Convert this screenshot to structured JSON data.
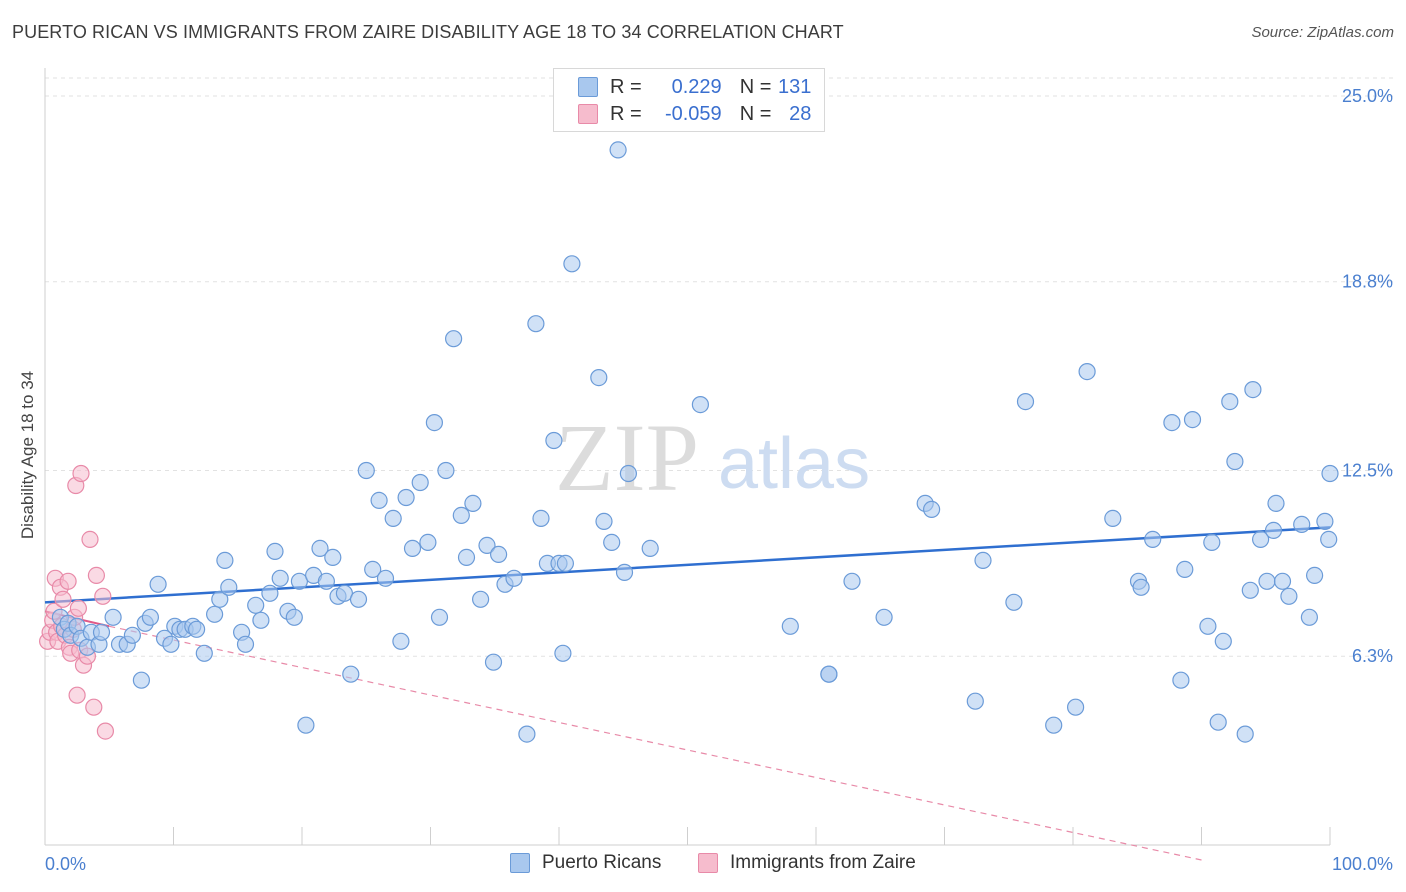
{
  "header": {
    "title": "PUERTO RICAN VS IMMIGRANTS FROM ZAIRE DISABILITY AGE 18 TO 34 CORRELATION CHART",
    "source": "Source: ZipAtlas.com"
  },
  "watermark": {
    "zip": "ZIP",
    "atlas": "atlas"
  },
  "legend_stats": {
    "rows": [
      {
        "r_label": "R = ",
        "r_value": "0.229",
        "n_label": "N = ",
        "n_value": "131",
        "color": "#a9c8ee",
        "edge": "#6b9bd8"
      },
      {
        "r_label": "R = ",
        "r_value": "-0.059",
        "n_label": "N = ",
        "n_value": "28",
        "color": "#f6bccd",
        "edge": "#e88aa8"
      }
    ]
  },
  "chart_data": {
    "type": "scatter",
    "title": "PUERTO RICAN VS IMMIGRANTS FROM ZAIRE DISABILITY AGE 18 TO 34 CORRELATION CHART",
    "xlabel": "",
    "ylabel": "Disability Age 18 to 34",
    "xlim": [
      0,
      100
    ],
    "ylim": [
      0,
      25.6
    ],
    "x_tick_labels": [
      "0.0%",
      "100.0%"
    ],
    "y_ticks": [
      {
        "value": 6.3,
        "label": "6.3%"
      },
      {
        "value": 12.5,
        "label": "12.5%"
      },
      {
        "value": 18.8,
        "label": "18.8%"
      },
      {
        "value": 25.0,
        "label": "25.0%"
      }
    ],
    "grid": "horizontal dashed",
    "legend_position": "bottom",
    "series": [
      {
        "name": "Puerto Ricans",
        "color": "#a9c8ee",
        "edge": "#6b9bd8",
        "trend": {
          "x": [
            0,
            100
          ],
          "y": [
            8.1,
            10.6
          ],
          "style": "solid",
          "color": "#2f6fd0"
        },
        "points": [
          [
            1.2,
            7.6
          ],
          [
            1.5,
            7.2
          ],
          [
            1.8,
            7.4
          ],
          [
            2.0,
            7.0
          ],
          [
            2.5,
            7.3
          ],
          [
            2.8,
            6.9
          ],
          [
            3.3,
            6.6
          ],
          [
            3.6,
            7.1
          ],
          [
            4.2,
            6.7
          ],
          [
            4.4,
            7.1
          ],
          [
            5.3,
            7.6
          ],
          [
            5.8,
            6.7
          ],
          [
            6.4,
            6.7
          ],
          [
            6.8,
            7.0
          ],
          [
            7.5,
            5.5
          ],
          [
            7.8,
            7.4
          ],
          [
            8.2,
            7.6
          ],
          [
            8.8,
            8.7
          ],
          [
            9.3,
            6.9
          ],
          [
            9.8,
            6.7
          ],
          [
            10.1,
            7.3
          ],
          [
            10.5,
            7.2
          ],
          [
            10.9,
            7.2
          ],
          [
            11.5,
            7.3
          ],
          [
            11.8,
            7.2
          ],
          [
            12.4,
            6.4
          ],
          [
            13.2,
            7.7
          ],
          [
            13.6,
            8.2
          ],
          [
            14.0,
            9.5
          ],
          [
            14.3,
            8.6
          ],
          [
            15.3,
            7.1
          ],
          [
            15.6,
            6.7
          ],
          [
            16.4,
            8.0
          ],
          [
            16.8,
            7.5
          ],
          [
            17.5,
            8.4
          ],
          [
            17.9,
            9.8
          ],
          [
            18.3,
            8.9
          ],
          [
            18.9,
            7.8
          ],
          [
            19.4,
            7.6
          ],
          [
            19.8,
            8.8
          ],
          [
            20.3,
            4.0
          ],
          [
            20.9,
            9.0
          ],
          [
            21.4,
            9.9
          ],
          [
            21.9,
            8.8
          ],
          [
            22.4,
            9.6
          ],
          [
            22.8,
            8.3
          ],
          [
            23.3,
            8.4
          ],
          [
            23.8,
            5.7
          ],
          [
            24.4,
            8.2
          ],
          [
            25.0,
            12.5
          ],
          [
            25.5,
            9.2
          ],
          [
            26.0,
            11.5
          ],
          [
            26.5,
            8.9
          ],
          [
            27.1,
            10.9
          ],
          [
            27.7,
            6.8
          ],
          [
            28.1,
            11.6
          ],
          [
            28.6,
            9.9
          ],
          [
            29.2,
            12.1
          ],
          [
            29.8,
            10.1
          ],
          [
            30.3,
            14.1
          ],
          [
            30.7,
            7.6
          ],
          [
            31.2,
            12.5
          ],
          [
            31.8,
            16.9
          ],
          [
            32.4,
            11.0
          ],
          [
            32.8,
            9.6
          ],
          [
            33.3,
            11.4
          ],
          [
            33.9,
            8.2
          ],
          [
            34.4,
            10.0
          ],
          [
            34.9,
            6.1
          ],
          [
            35.3,
            9.7
          ],
          [
            35.8,
            8.7
          ],
          [
            36.5,
            8.9
          ],
          [
            37.5,
            3.7
          ],
          [
            38.2,
            17.4
          ],
          [
            38.6,
            10.9
          ],
          [
            39.1,
            9.4
          ],
          [
            39.6,
            13.5
          ],
          [
            40.0,
            9.4
          ],
          [
            40.3,
            6.4
          ],
          [
            40.5,
            9.4
          ],
          [
            41.0,
            19.4
          ],
          [
            43.1,
            15.6
          ],
          [
            43.5,
            10.8
          ],
          [
            44.1,
            10.1
          ],
          [
            44.6,
            23.2
          ],
          [
            45.1,
            9.1
          ],
          [
            45.4,
            12.4
          ],
          [
            47.1,
            9.9
          ],
          [
            51.0,
            14.7
          ],
          [
            58.0,
            7.3
          ],
          [
            61.0,
            5.7
          ],
          [
            61.0,
            5.7
          ],
          [
            62.8,
            8.8
          ],
          [
            65.3,
            7.6
          ],
          [
            68.5,
            11.4
          ],
          [
            69.0,
            11.2
          ],
          [
            72.4,
            4.8
          ],
          [
            73.0,
            9.5
          ],
          [
            75.4,
            8.1
          ],
          [
            76.3,
            14.8
          ],
          [
            78.5,
            4.0
          ],
          [
            80.2,
            4.6
          ],
          [
            81.1,
            15.8
          ],
          [
            83.1,
            10.9
          ],
          [
            85.1,
            8.8
          ],
          [
            85.3,
            8.6
          ],
          [
            86.2,
            10.2
          ],
          [
            87.7,
            14.1
          ],
          [
            88.4,
            5.5
          ],
          [
            88.7,
            9.2
          ],
          [
            89.3,
            14.2
          ],
          [
            90.5,
            7.3
          ],
          [
            90.8,
            10.1
          ],
          [
            91.3,
            4.1
          ],
          [
            91.7,
            6.8
          ],
          [
            92.2,
            14.8
          ],
          [
            92.6,
            12.8
          ],
          [
            93.4,
            3.7
          ],
          [
            93.8,
            8.5
          ],
          [
            94.0,
            15.2
          ],
          [
            94.6,
            10.2
          ],
          [
            95.1,
            8.8
          ],
          [
            95.6,
            10.5
          ],
          [
            95.8,
            11.4
          ],
          [
            96.3,
            8.8
          ],
          [
            96.8,
            8.3
          ],
          [
            97.8,
            10.7
          ],
          [
            98.4,
            7.6
          ],
          [
            98.8,
            9.0
          ],
          [
            99.6,
            10.8
          ],
          [
            99.9,
            10.2
          ],
          [
            100.0,
            12.4
          ]
        ]
      },
      {
        "name": "Immigrants from Zaire",
        "color": "#f6bccd",
        "edge": "#e88aa8",
        "trend_solid": {
          "x": [
            0,
            5
          ],
          "y": [
            7.8,
            7.3
          ],
          "style": "solid",
          "color": "#e05a88"
        },
        "trend_dashed": {
          "x": [
            5,
            90
          ],
          "y": [
            7.3,
            -0.5
          ],
          "style": "dashed",
          "color": "#e88aa8"
        },
        "points": [
          [
            0.2,
            6.8
          ],
          [
            0.4,
            7.1
          ],
          [
            0.6,
            7.5
          ],
          [
            0.7,
            7.8
          ],
          [
            0.8,
            8.9
          ],
          [
            0.9,
            7.1
          ],
          [
            1.0,
            6.8
          ],
          [
            1.2,
            8.6
          ],
          [
            1.3,
            7.3
          ],
          [
            1.4,
            8.2
          ],
          [
            1.6,
            7.0
          ],
          [
            1.8,
            8.8
          ],
          [
            1.9,
            6.6
          ],
          [
            2.0,
            6.4
          ],
          [
            2.2,
            7.2
          ],
          [
            2.3,
            7.6
          ],
          [
            2.4,
            12.0
          ],
          [
            2.5,
            5.0
          ],
          [
            2.6,
            7.9
          ],
          [
            2.7,
            6.5
          ],
          [
            2.8,
            12.4
          ],
          [
            3.0,
            6.0
          ],
          [
            3.3,
            6.3
          ],
          [
            3.5,
            10.2
          ],
          [
            3.8,
            4.6
          ],
          [
            4.0,
            9.0
          ],
          [
            4.5,
            8.3
          ],
          [
            4.7,
            3.8
          ]
        ]
      }
    ]
  },
  "legend_bottom": {
    "items": [
      {
        "label": "Puerto Ricans",
        "color": "#a9c8ee",
        "edge": "#6b9bd8"
      },
      {
        "label": "Immigrants from Zaire",
        "color": "#f6bccd",
        "edge": "#e88aa8"
      }
    ]
  }
}
